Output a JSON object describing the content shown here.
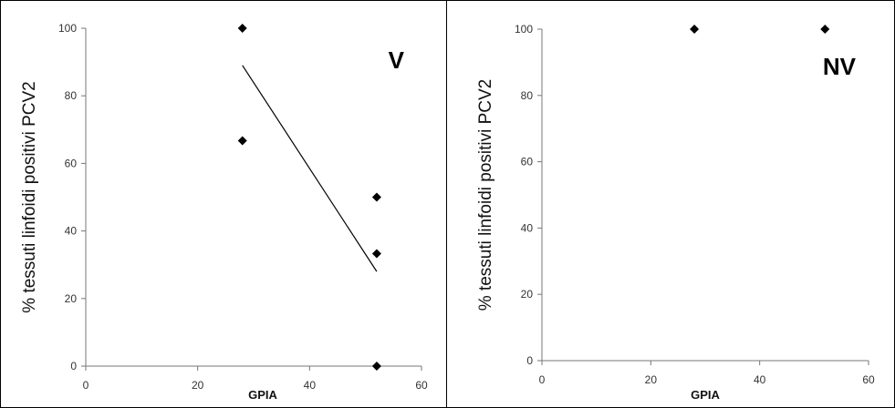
{
  "chart_data": [
    {
      "type": "scatter",
      "corner_label": "V",
      "xlabel": "GPIA",
      "ylabel": "% tessuti linfoidi positivi PCV2",
      "xlim": [
        0,
        60
      ],
      "ylim": [
        0,
        100
      ],
      "xticks": [
        0,
        20,
        40,
        60
      ],
      "yticks": [
        0,
        20,
        40,
        60,
        80,
        100
      ],
      "series": [
        {
          "points": [
            [
              28,
              100
            ],
            [
              28,
              66.7
            ],
            [
              52,
              50
            ],
            [
              52,
              33.3
            ],
            [
              52,
              0
            ]
          ]
        }
      ],
      "trendline": {
        "x": [
          28,
          52
        ],
        "y": [
          89,
          28
        ]
      },
      "grid": false,
      "marker_color": "#000000"
    },
    {
      "type": "scatter",
      "corner_label": "NV",
      "xlabel": "GPIA",
      "ylabel": "% tessuti linfoidi positivi PCV2",
      "xlim": [
        0,
        60
      ],
      "ylim": [
        0,
        100
      ],
      "xticks": [
        0,
        20,
        40,
        60
      ],
      "yticks": [
        0,
        20,
        40,
        60,
        80,
        100
      ],
      "series": [
        {
          "points": [
            [
              28,
              100
            ],
            [
              52,
              100
            ]
          ]
        }
      ],
      "grid": false,
      "marker_color": "#000000"
    }
  ]
}
